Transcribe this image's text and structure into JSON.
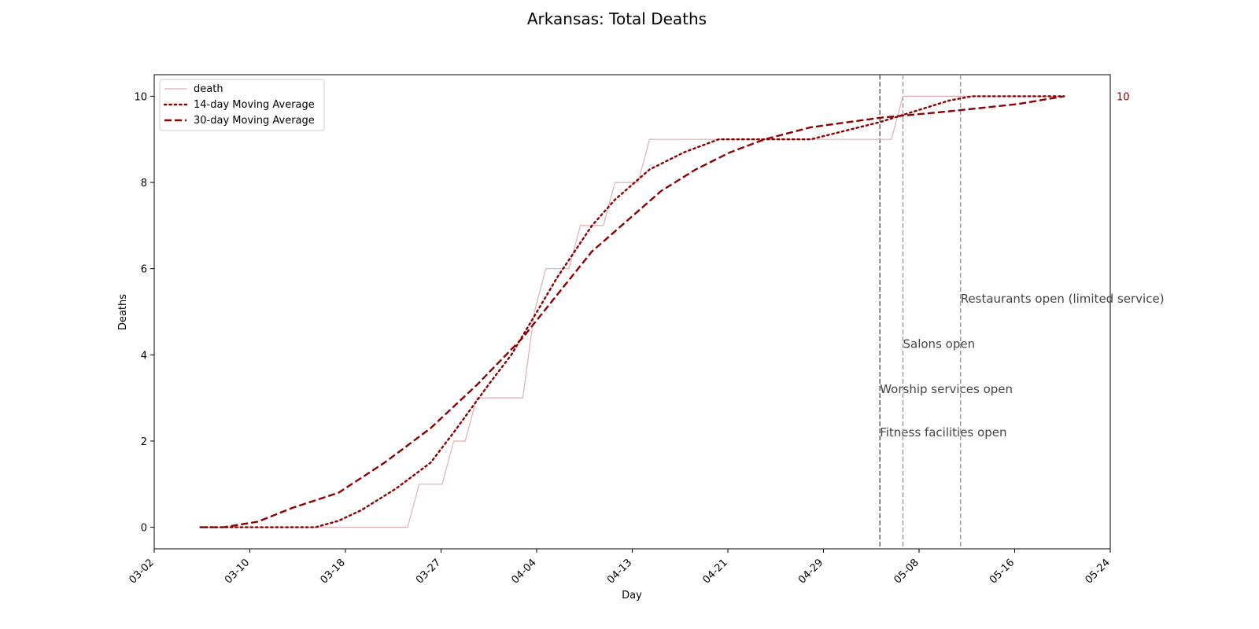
{
  "chart_data": {
    "type": "line",
    "title": "Arkansas: Total Deaths",
    "xlabel": "Day",
    "ylabel": "Deaths",
    "x_ticks": [
      "03-02",
      "03-10",
      "03-18",
      "03-27",
      "04-04",
      "04-13",
      "04-21",
      "04-29",
      "05-08",
      "05-16",
      "05-24"
    ],
    "y_ticks": [
      0,
      2,
      4,
      6,
      8,
      10
    ],
    "xlim": [
      "2020-03-02",
      "2020-05-24"
    ],
    "ylim": [
      -0.5,
      10.5
    ],
    "legend_position": "top-left",
    "last_value_label": "10",
    "colors": {
      "death": "#e0aeb0",
      "ma": "#8b0000",
      "event_line_first": "#555555",
      "event_line": "#999999",
      "event_text": "#444444"
    },
    "series": [
      {
        "name": "death",
        "style": "solid-thin",
        "points": [
          [
            "2020-03-06",
            0
          ],
          [
            "2020-03-24",
            0
          ],
          [
            "2020-03-25",
            1
          ],
          [
            "2020-03-27",
            1
          ],
          [
            "2020-03-28",
            2
          ],
          [
            "2020-03-29",
            2
          ],
          [
            "2020-03-30",
            3
          ],
          [
            "2020-04-03",
            3
          ],
          [
            "2020-04-04",
            5
          ],
          [
            "2020-04-05",
            6
          ],
          [
            "2020-04-07",
            6
          ],
          [
            "2020-04-08",
            7
          ],
          [
            "2020-04-10",
            7
          ],
          [
            "2020-04-11",
            8
          ],
          [
            "2020-04-13",
            8
          ],
          [
            "2020-04-14",
            9
          ],
          [
            "2020-05-05",
            9
          ],
          [
            "2020-05-06",
            10
          ],
          [
            "2020-05-20",
            10
          ]
        ]
      },
      {
        "name": "14-day Moving Average",
        "style": "dotted",
        "points": [
          [
            "2020-03-06",
            0
          ],
          [
            "2020-03-16",
            0
          ],
          [
            "2020-03-18",
            0.15
          ],
          [
            "2020-03-20",
            0.4
          ],
          [
            "2020-03-23",
            0.9
          ],
          [
            "2020-03-26",
            1.5
          ],
          [
            "2020-03-28",
            2.2
          ],
          [
            "2020-03-31",
            3.3
          ],
          [
            "2020-04-02",
            4.0
          ],
          [
            "2020-04-04",
            4.9
          ],
          [
            "2020-04-06",
            5.8
          ],
          [
            "2020-04-09",
            7.0
          ],
          [
            "2020-04-11",
            7.6
          ],
          [
            "2020-04-14",
            8.3
          ],
          [
            "2020-04-17",
            8.7
          ],
          [
            "2020-04-20",
            9.0
          ],
          [
            "2020-04-28",
            9.0
          ],
          [
            "2020-05-04",
            9.4
          ],
          [
            "2020-05-10",
            9.9
          ],
          [
            "2020-05-12",
            10.0
          ],
          [
            "2020-05-20",
            10.0
          ]
        ]
      },
      {
        "name": "30-day Moving Average",
        "style": "dashed",
        "points": [
          [
            "2020-03-06",
            0
          ],
          [
            "2020-03-08",
            0
          ],
          [
            "2020-03-11",
            0.13
          ],
          [
            "2020-03-14",
            0.45
          ],
          [
            "2020-03-18",
            0.8
          ],
          [
            "2020-03-22",
            1.5
          ],
          [
            "2020-03-26",
            2.3
          ],
          [
            "2020-03-30",
            3.3
          ],
          [
            "2020-04-03",
            4.4
          ],
          [
            "2020-04-06",
            5.4
          ],
          [
            "2020-04-09",
            6.4
          ],
          [
            "2020-04-12",
            7.1
          ],
          [
            "2020-04-15",
            7.8
          ],
          [
            "2020-04-18",
            8.3
          ],
          [
            "2020-04-21",
            8.7
          ],
          [
            "2020-04-24",
            9.0
          ],
          [
            "2020-04-28",
            9.28
          ],
          [
            "2020-05-04",
            9.5
          ],
          [
            "2020-05-10",
            9.65
          ],
          [
            "2020-05-16",
            9.82
          ],
          [
            "2020-05-20",
            10.0
          ]
        ]
      }
    ],
    "events": [
      {
        "date": "2020-05-04",
        "label": "Fitness facilities open",
        "y": 2.2
      },
      {
        "date": "2020-05-04",
        "label": "Worship services open",
        "y": 3.2
      },
      {
        "date": "2020-05-06",
        "label": "Salons open",
        "y": 4.25
      },
      {
        "date": "2020-05-11",
        "label": "Restaurants open (limited service)",
        "y": 5.3
      }
    ]
  }
}
